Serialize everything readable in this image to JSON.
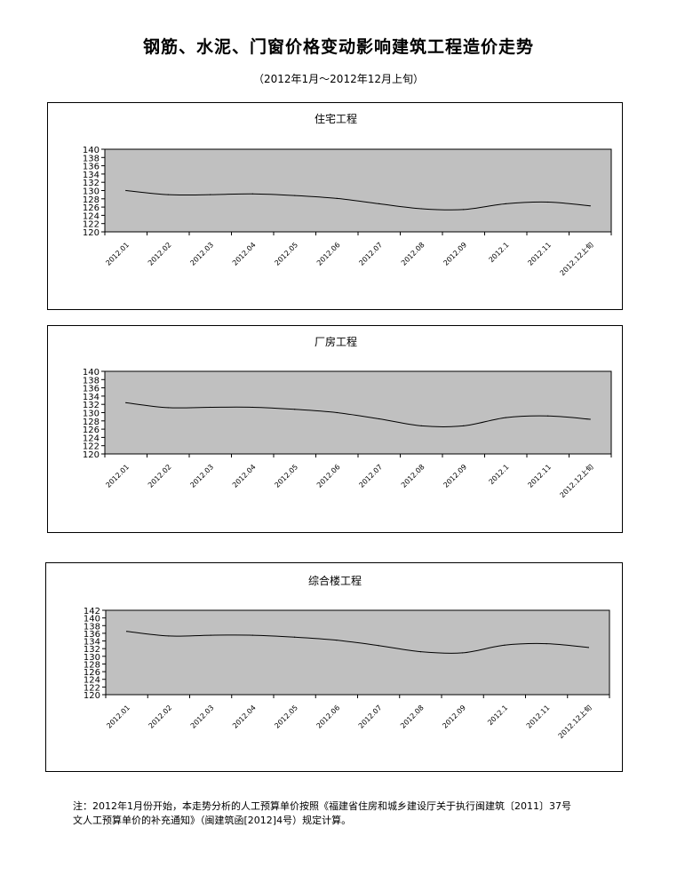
{
  "page": {
    "title": "钢筋、水泥、门窗价格变动影响建筑工程造价走势",
    "subtitle": "（2012年1月～2012年12月上旬）",
    "footnote_line1": "注：2012年1月份开始，本走势分析的人工预算单价按照《福建省住房和城乡建设厅关于执行闽建筑〔2011〕37号",
    "footnote_line2": "文人工预算单价的补充通知》（闽建筑函[2012]4号）规定计算。"
  },
  "colors": {
    "plot_background": "#c0c0c0",
    "line": "#000000",
    "panel_border": "#000000"
  },
  "chart_data": [
    {
      "type": "line",
      "title": "住宅工程",
      "categories": [
        "2012.01",
        "2012.02",
        "2012.03",
        "2012.04",
        "2012.05",
        "2012.06",
        "2012.07",
        "2012.08",
        "2012.09",
        "2012.1",
        "2012.11",
        "2012.12上旬"
      ],
      "series": [
        {
          "values": [
            130.0,
            129.0,
            129.0,
            129.2,
            128.8,
            128.1,
            126.8,
            125.6,
            125.4,
            126.8,
            127.2,
            126.3
          ]
        }
      ],
      "ylim": [
        120,
        140
      ],
      "yticks": [
        120,
        122,
        124,
        126,
        128,
        130,
        132,
        134,
        136,
        138,
        140
      ],
      "grid": false
    },
    {
      "type": "line",
      "title": "厂房工程",
      "categories": [
        "2012.01",
        "2012.02",
        "2012.03",
        "2012.04",
        "2012.05",
        "2012.06",
        "2012.07",
        "2012.08",
        "2012.09",
        "2012.1",
        "2012.11",
        "2012.12上旬"
      ],
      "series": [
        {
          "values": [
            132.4,
            131.2,
            131.3,
            131.3,
            130.8,
            130.0,
            128.5,
            126.8,
            126.8,
            128.8,
            129.2,
            128.4
          ]
        }
      ],
      "ylim": [
        120,
        140
      ],
      "yticks": [
        120,
        122,
        124,
        126,
        128,
        130,
        132,
        134,
        136,
        138,
        140
      ],
      "grid": false
    },
    {
      "type": "line",
      "title": "综合楼工程",
      "categories": [
        "2012.01",
        "2012.02",
        "2012.03",
        "2012.04",
        "2012.05",
        "2012.06",
        "2012.07",
        "2012.08",
        "2012.09",
        "2012.1",
        "2012.11",
        "2012.12上旬"
      ],
      "series": [
        {
          "values": [
            136.5,
            135.3,
            135.5,
            135.5,
            135.0,
            134.2,
            132.8,
            131.2,
            130.9,
            132.9,
            133.3,
            132.3
          ]
        }
      ],
      "ylim": [
        120,
        142
      ],
      "yticks": [
        120,
        122,
        124,
        126,
        128,
        130,
        132,
        134,
        136,
        138,
        140,
        142
      ],
      "grid": false
    }
  ]
}
